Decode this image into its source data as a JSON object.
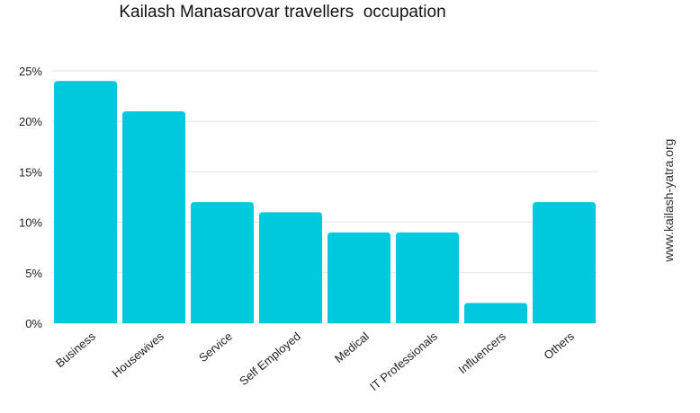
{
  "chart_data": {
    "type": "bar",
    "title": "Kailash Manasarovar travellers  occupation",
    "xlabel": "",
    "ylabel": "",
    "categories": [
      "Business",
      "Housewives",
      "Service",
      "Self Employed",
      "Medical",
      "IT Professionals",
      "Influencers",
      "Others"
    ],
    "values": [
      24,
      21,
      12,
      11,
      9,
      9,
      2,
      12
    ],
    "ylim": [
      0,
      25
    ],
    "yticks": [
      0,
      5,
      10,
      15,
      20,
      25
    ],
    "ytick_labels": [
      "0%",
      "5%",
      "10%",
      "15%",
      "20%",
      "25%"
    ],
    "grid": true,
    "legend": "none",
    "bar_color": "#00c9dd",
    "grid_color": "#e6e6e6"
  },
  "watermark": "www.kailash-yatra.org"
}
